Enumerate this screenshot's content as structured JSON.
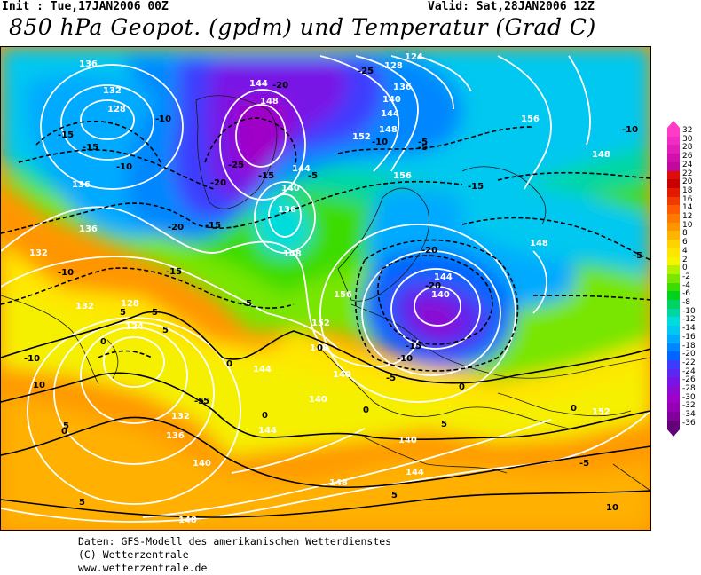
{
  "header": {
    "init": "Init : Tue,17JAN2006 00Z",
    "valid": "Valid: Sat,28JAN2006 12Z",
    "title": "850 hPa Geopot. (gpdm) und Temperatur (Grad C)"
  },
  "colors": {
    "background": "#ffffff",
    "map_border": "#000000",
    "geopotential_contour": "#ffffff",
    "temperature_contour": "#000000",
    "landmask_outline": "#1a1a1a"
  },
  "legend": {
    "steps": [
      {
        "label": "32",
        "color": "#ff3cc8"
      },
      {
        "label": "30",
        "color": "#f02dc3"
      },
      {
        "label": "28",
        "color": "#e11eb9"
      },
      {
        "label": "26",
        "color": "#d210ad"
      },
      {
        "label": "24",
        "color": "#c00a9e"
      },
      {
        "label": "22",
        "color": "#e00b0b"
      },
      {
        "label": "20",
        "color": "#c80000"
      },
      {
        "label": "18",
        "color": "#e31a00"
      },
      {
        "label": "16",
        "color": "#f03a00"
      },
      {
        "label": "14",
        "color": "#ff5a00"
      },
      {
        "label": "12",
        "color": "#ff7a00"
      },
      {
        "label": "10",
        "color": "#ff9600"
      },
      {
        "label": "8",
        "color": "#ffb400"
      },
      {
        "label": "6",
        "color": "#ffd200"
      },
      {
        "label": "4",
        "color": "#ffe600"
      },
      {
        "label": "2",
        "color": "#f5f500"
      },
      {
        "label": "0",
        "color": "#b4f000"
      },
      {
        "label": "-2",
        "color": "#78e600"
      },
      {
        "label": "-4",
        "color": "#3cdc00"
      },
      {
        "label": "-6",
        "color": "#00d21e"
      },
      {
        "label": "-8",
        "color": "#00d264"
      },
      {
        "label": "-10",
        "color": "#00d7a0"
      },
      {
        "label": "-12",
        "color": "#00dcdc"
      },
      {
        "label": "-14",
        "color": "#00c8f0"
      },
      {
        "label": "-16",
        "color": "#00aaff"
      },
      {
        "label": "-18",
        "color": "#0087ff"
      },
      {
        "label": "-20",
        "color": "#0064ff"
      },
      {
        "label": "-22",
        "color": "#3c3cff"
      },
      {
        "label": "-24",
        "color": "#5a28f0"
      },
      {
        "label": "-26",
        "color": "#7814e6"
      },
      {
        "label": "-28",
        "color": "#8c0ad2"
      },
      {
        "label": "-30",
        "color": "#a000c8"
      },
      {
        "label": "-32",
        "color": "#9600b4"
      },
      {
        "label": "-34",
        "color": "#82009b"
      },
      {
        "label": "-36",
        "color": "#640078"
      }
    ]
  },
  "map_labels": {
    "geopotential": [
      "136",
      "132",
      "128",
      "136",
      "132",
      "136",
      "132",
      "128",
      "124",
      "144",
      "148",
      "144",
      "140",
      "136",
      "128",
      "124",
      "144",
      "140",
      "136",
      "148",
      "156",
      "144",
      "140",
      "148",
      "156",
      "152",
      "148",
      "152",
      "156",
      "148",
      "148",
      "152",
      "148",
      "144",
      "144",
      "140",
      "144",
      "140",
      "136",
      "132",
      "140",
      "148",
      "140",
      "148",
      "148",
      "152",
      "156",
      "148"
    ],
    "temperature": [
      "-15",
      "-15",
      "-10",
      "-10",
      "-20",
      "-25",
      "-20",
      "-15",
      "-25",
      "-20",
      "-15",
      "-15",
      "-10",
      "-5",
      "-5",
      "-10",
      "-5",
      "-5",
      "-10",
      "-15",
      "-20",
      "-20",
      "-15",
      "-10",
      "-5",
      "-10",
      "-5",
      "-5",
      "0",
      "0",
      "5",
      "5",
      "0",
      "0",
      "0",
      "5",
      "5",
      "10",
      "5",
      "-5",
      "-5",
      "0",
      "0",
      "0",
      "5",
      "5",
      "10",
      "10",
      "0",
      "-5",
      "-5",
      "5",
      "5",
      "10"
    ]
  },
  "credits": {
    "line1": "Daten: GFS-Modell des amerikanischen Wetterdienstes",
    "line2": "(C) Wetterzentrale",
    "line3": "www.wetterzentrale.de"
  }
}
